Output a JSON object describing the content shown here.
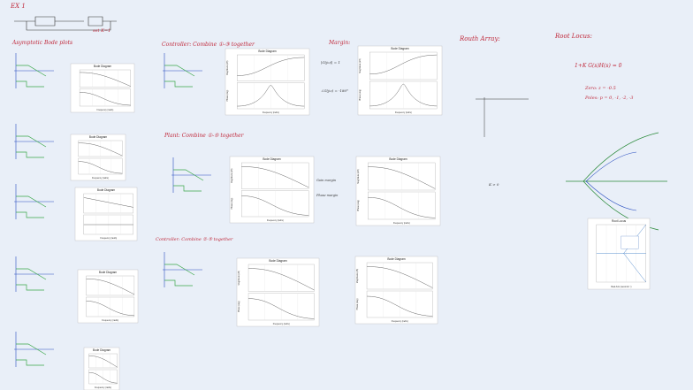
{
  "header": {
    "title": "EX 1",
    "set_k": "set K=1"
  },
  "notes": [
    {
      "text": "Asymptotic Bode plots"
    },
    {
      "text": "Controller: Combine ①-③ together"
    },
    {
      "text": "Margin:"
    },
    {
      "text": "Plant: Combine ①-⑤ together"
    },
    {
      "text": "Controller: Combine ①-⑤ together"
    },
    {
      "text": "Routh Array:"
    },
    {
      "text": "Root Locus:"
    },
    {
      "text": "1+K G(s)H(s) = 0"
    },
    {
      "text": "Zero: z = -0.5"
    },
    {
      "text": "Poles: p = 0, -1, -2, -3"
    },
    {
      "text": "∠G(jω) = -180°"
    },
    {
      "text": "|G(jω)| = 1"
    },
    {
      "text": "Gain margin"
    },
    {
      "text": "Phase margin"
    },
    {
      "text": "K > 0"
    }
  ],
  "plots": [
    {
      "title": "Bode Diagram",
      "xlabel": "Frequency (rad/s)"
    },
    {
      "title": "Bode Diagram",
      "xlabel": "Frequency (rad/s)"
    },
    {
      "title": "Bode Diagram",
      "xlabel": "Frequency (rad/s)"
    },
    {
      "title": "Bode Diagram",
      "xlabel": "Frequency (rad/s)"
    },
    {
      "title": "Bode Diagram",
      "xlabel": "Frequency (rad/s)"
    },
    {
      "title": "Bode Diagram",
      "xlabel": "Frequency (rad/s)",
      "ylabel1": "Magnitude (dB)",
      "ylabel2": "Phase (deg)"
    },
    {
      "title": "Bode Diagram",
      "xlabel": "Frequency (rad/s)",
      "ylabel1": "Magnitude (dB)",
      "ylabel2": "Phase (deg)"
    },
    {
      "title": "Bode Diagram",
      "xlabel": "Frequency (rad/s)",
      "ylabel1": "Magnitude (dB)",
      "ylabel2": "Phase (deg)"
    },
    {
      "title": "Bode Diagram",
      "xlabel": "Frequency (rad/s)",
      "ylabel1": "Magnitude (dB)",
      "ylabel2": "Phase (deg)"
    },
    {
      "title": "Bode Diagram",
      "xlabel": "Frequency (rad/s)",
      "ylabel1": "Magnitude (dB)",
      "ylabel2": "Phase (deg)"
    },
    {
      "title": "Bode Diagram",
      "xlabel": "Frequency (rad/s)",
      "ylabel1": "Magnitude (dB)",
      "ylabel2": "Phase (deg)"
    },
    {
      "title": "Root Locus",
      "xlabel": "Real Axis (seconds⁻¹)"
    }
  ]
}
